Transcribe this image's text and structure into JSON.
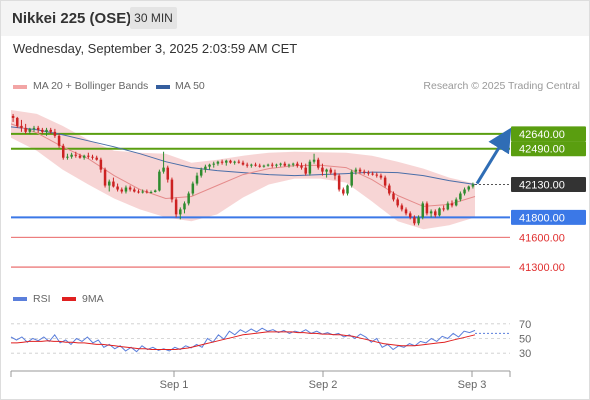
{
  "header": {
    "title": "Nikkei 225 (OSE)",
    "interval": "30 MIN"
  },
  "timestamp": "Wednesday, September 3, 2025 2:03:59 AM CET",
  "legend": {
    "item1": "MA 20 + Bollinger Bands",
    "item2": "MA 50",
    "credit": "Research © 2025 Trading Central"
  },
  "rsi_legend": {
    "item1": "RSI",
    "item2": "9MA"
  },
  "colors": {
    "resistance": "#5a9e10",
    "support": "#3b78e7",
    "target_low": "#e03030",
    "up_candle": "#2e8b2e",
    "down_candle": "#cc2222",
    "bands": "#f3c3c3",
    "ma50": "#4a6ea8",
    "ma20": "#e58b8b",
    "arrow": "#2f6db5",
    "price_tag": "#333333"
  },
  "chart_data": [
    {
      "type": "candlestick",
      "title": "",
      "x_ticks": [
        "Sep 1",
        "Sep 2",
        "Sep 3"
      ],
      "levels": [
        {
          "label": "42640.00",
          "value": 42640,
          "kind": "resistance"
        },
        {
          "label": "42490.00",
          "value": 42490,
          "kind": "resistance"
        },
        {
          "label": "42130.00",
          "value": 42130,
          "kind": "last_price"
        },
        {
          "label": "41800.00",
          "value": 41800,
          "kind": "support"
        },
        {
          "label": "41600.00",
          "value": 41600,
          "kind": "target"
        },
        {
          "label": "41300.00",
          "value": 41300,
          "kind": "target"
        }
      ],
      "ylim": [
        41150,
        42950
      ],
      "projection": {
        "from": 42140,
        "to": 42640
      },
      "ma50": [
        42710,
        42680,
        42630,
        42570,
        42510,
        42440,
        42360,
        42300,
        42270,
        42250,
        42230,
        42220,
        42230,
        42240,
        42255,
        42250,
        42220,
        42170,
        42130
      ],
      "ma20": [
        42740,
        42650,
        42510,
        42390,
        42220,
        42080,
        41990,
        42010,
        42120,
        42230,
        42290,
        42320,
        42325,
        42300,
        42180,
        42020,
        41910,
        41930,
        42010
      ],
      "band_upper": [
        42880,
        42840,
        42720,
        42580,
        42470,
        42450,
        42440,
        42350,
        42380,
        42420,
        42450,
        42460,
        42455,
        42450,
        42420,
        42360,
        42290,
        42200,
        42140
      ],
      "band_lower": [
        42600,
        42470,
        42280,
        42130,
        41990,
        41880,
        41800,
        41760,
        41830,
        42000,
        42130,
        42190,
        42190,
        42150,
        41960,
        41760,
        41680,
        41720,
        41800
      ],
      "candles": [
        [
          42820,
          42840,
          42760,
          42800
        ],
        [
          42800,
          42810,
          42700,
          42720
        ],
        [
          42720,
          42780,
          42660,
          42700
        ],
        [
          42700,
          42740,
          42640,
          42660
        ],
        [
          42660,
          42700,
          42640,
          42690
        ],
        [
          42690,
          42720,
          42660,
          42700
        ],
        [
          42700,
          42720,
          42650,
          42680
        ],
        [
          42680,
          42700,
          42640,
          42660
        ],
        [
          42660,
          42700,
          42620,
          42680
        ],
        [
          42680,
          42700,
          42640,
          42660
        ],
        [
          42660,
          42690,
          42600,
          42620
        ],
        [
          42620,
          42640,
          42500,
          42520
        ],
        [
          42520,
          42540,
          42380,
          42400
        ],
        [
          42400,
          42440,
          42380,
          42410
        ],
        [
          42410,
          42450,
          42390,
          42430
        ],
        [
          42430,
          42460,
          42400,
          42420
        ],
        [
          42420,
          42440,
          42390,
          42400
        ],
        [
          42400,
          42430,
          42380,
          42420
        ],
        [
          42420,
          42450,
          42390,
          42410
        ],
        [
          42410,
          42430,
          42380,
          42400
        ],
        [
          42400,
          42420,
          42370,
          42380
        ],
        [
          42380,
          42400,
          42250,
          42280
        ],
        [
          42280,
          42300,
          42100,
          42120
        ],
        [
          42120,
          42180,
          42060,
          42160
        ],
        [
          42160,
          42200,
          42100,
          42110
        ],
        [
          42110,
          42140,
          42060,
          42080
        ],
        [
          42080,
          42100,
          42040,
          42060
        ],
        [
          42060,
          42120,
          42040,
          42100
        ],
        [
          42100,
          42120,
          42060,
          42080
        ],
        [
          42080,
          42100,
          42050,
          42060
        ],
        [
          42060,
          42080,
          42040,
          42050
        ],
        [
          42050,
          42080,
          42040,
          42060
        ],
        [
          42060,
          42080,
          42040,
          42050
        ],
        [
          42050,
          42070,
          42040,
          42055
        ],
        [
          42055,
          42080,
          42050,
          42070
        ],
        [
          42070,
          42280,
          42060,
          42260
        ],
        [
          42260,
          42460,
          42240,
          42300
        ],
        [
          42300,
          42320,
          42150,
          42180
        ],
        [
          42180,
          42200,
          41950,
          41980
        ],
        [
          41980,
          42000,
          41800,
          41830
        ],
        [
          41830,
          41900,
          41780,
          41880
        ],
        [
          41880,
          41960,
          41840,
          41940
        ],
        [
          41940,
          42060,
          41920,
          42040
        ],
        [
          42040,
          42160,
          42020,
          42140
        ],
        [
          42140,
          42250,
          42120,
          42220
        ],
        [
          42220,
          42300,
          42200,
          42280
        ],
        [
          42280,
          42330,
          42250,
          42310
        ],
        [
          42310,
          42340,
          42280,
          42330
        ],
        [
          42330,
          42360,
          42300,
          42340
        ],
        [
          42340,
          42370,
          42320,
          42360
        ],
        [
          42360,
          42380,
          42330,
          42350
        ],
        [
          42350,
          42380,
          42320,
          42370
        ],
        [
          42370,
          42380,
          42340,
          42350
        ],
        [
          42350,
          42370,
          42330,
          42360
        ],
        [
          42360,
          42380,
          42340,
          42350
        ],
        [
          42350,
          42370,
          42320,
          42330
        ],
        [
          42330,
          42350,
          42300,
          42320
        ],
        [
          42320,
          42340,
          42300,
          42330
        ],
        [
          42330,
          42350,
          42310,
          42320
        ],
        [
          42320,
          42340,
          42300,
          42310
        ],
        [
          42310,
          42330,
          42300,
          42320
        ],
        [
          42320,
          42340,
          42310,
          42330
        ],
        [
          42330,
          42350,
          42300,
          42320
        ],
        [
          42320,
          42340,
          42300,
          42330
        ],
        [
          42330,
          42350,
          42310,
          42340
        ],
        [
          42340,
          42360,
          42310,
          42320
        ],
        [
          42320,
          42340,
          42300,
          42330
        ],
        [
          42330,
          42350,
          42310,
          42340
        ],
        [
          42340,
          42360,
          42300,
          42320
        ],
        [
          42320,
          42350,
          42280,
          42300
        ],
        [
          42300,
          42340,
          42220,
          42240
        ],
        [
          42240,
          42380,
          42220,
          42360
        ],
        [
          42360,
          42440,
          42340,
          42380
        ],
        [
          42380,
          42400,
          42280,
          42300
        ],
        [
          42300,
          42340,
          42220,
          42260
        ],
        [
          42260,
          42290,
          42200,
          42280
        ],
        [
          42280,
          42300,
          42230,
          42250
        ],
        [
          42250,
          42280,
          42180,
          42220
        ],
        [
          42220,
          42240,
          42060,
          42080
        ],
        [
          42080,
          42100,
          42020,
          42040
        ],
        [
          42040,
          42130,
          42020,
          42120
        ],
        [
          42120,
          42280,
          42100,
          42260
        ],
        [
          42260,
          42300,
          42230,
          42280
        ],
        [
          42280,
          42300,
          42240,
          42260
        ],
        [
          42260,
          42280,
          42230,
          42250
        ],
        [
          42250,
          42270,
          42220,
          42240
        ],
        [
          42240,
          42260,
          42220,
          42230
        ],
        [
          42230,
          42250,
          42200,
          42220
        ],
        [
          42220,
          42240,
          42180,
          42200
        ],
        [
          42200,
          42220,
          42100,
          42120
        ],
        [
          42120,
          42140,
          42020,
          42040
        ],
        [
          42040,
          42060,
          41960,
          41980
        ],
        [
          41980,
          42000,
          41900,
          41920
        ],
        [
          41920,
          41940,
          41860,
          41880
        ],
        [
          41880,
          41900,
          41820,
          41840
        ],
        [
          41840,
          41860,
          41780,
          41800
        ],
        [
          41800,
          41820,
          41720,
          41740
        ],
        [
          41740,
          41820,
          41720,
          41800
        ],
        [
          41800,
          41960,
          41780,
          41940
        ],
        [
          41940,
          41960,
          41820,
          41840
        ],
        [
          41840,
          41880,
          41800,
          41860
        ],
        [
          41860,
          41880,
          41800,
          41820
        ],
        [
          41820,
          41900,
          41810,
          41890
        ],
        [
          41890,
          41920,
          41860,
          41880
        ],
        [
          41880,
          41960,
          41870,
          41940
        ],
        [
          41940,
          41970,
          41900,
          41920
        ],
        [
          41920,
          42000,
          41910,
          41980
        ],
        [
          41980,
          42060,
          41960,
          42040
        ],
        [
          42040,
          42100,
          42020,
          42080
        ],
        [
          42080,
          42120,
          42060,
          42110
        ],
        [
          42110,
          42150,
          42090,
          42130
        ]
      ]
    },
    {
      "type": "line",
      "title": "",
      "yticks": [
        30,
        50,
        70
      ],
      "ylim": [
        18,
        82
      ],
      "x_ticks": [
        "Sep 1",
        "Sep 2",
        "Sep 3"
      ],
      "series": [
        {
          "name": "RSI",
          "values": [
            52,
            48,
            52,
            45,
            50,
            47,
            52,
            46,
            55,
            44,
            48,
            42,
            50,
            46,
            52,
            44,
            48,
            38,
            42,
            36,
            40,
            33,
            38,
            32,
            40,
            35,
            38,
            34,
            36,
            33,
            38,
            35,
            40,
            37,
            42,
            38,
            50,
            45,
            55,
            49,
            60,
            55,
            62,
            58,
            63,
            59,
            64,
            60,
            62,
            58,
            61,
            57,
            60,
            58,
            62,
            57,
            60,
            56,
            58,
            55,
            57,
            52,
            55,
            50,
            56,
            52,
            45,
            50,
            38,
            42,
            35,
            40,
            38,
            43,
            40,
            46,
            44,
            50,
            46,
            53,
            50,
            57,
            52,
            60,
            58,
            61
          ]
        },
        {
          "name": "9MA",
          "values": [
            44,
            44,
            45,
            46,
            46,
            46,
            47,
            46,
            46,
            45,
            45,
            44,
            44,
            43,
            42,
            42,
            41,
            40,
            39,
            38,
            37,
            36,
            36,
            35,
            35,
            35,
            35,
            35,
            36,
            37,
            39,
            41,
            43,
            45,
            47,
            49,
            51,
            53,
            55,
            56,
            57,
            58,
            59,
            59,
            59,
            59,
            59,
            58,
            58,
            57,
            57,
            56,
            56,
            55,
            55,
            54,
            53,
            51,
            49,
            47,
            45,
            43,
            42,
            41,
            40,
            40,
            40,
            41,
            42,
            43,
            44,
            45,
            47,
            49,
            51,
            53,
            55
          ]
        },
        {
          "name": "Dotted",
          "values": [
            57
          ]
        }
      ]
    }
  ]
}
